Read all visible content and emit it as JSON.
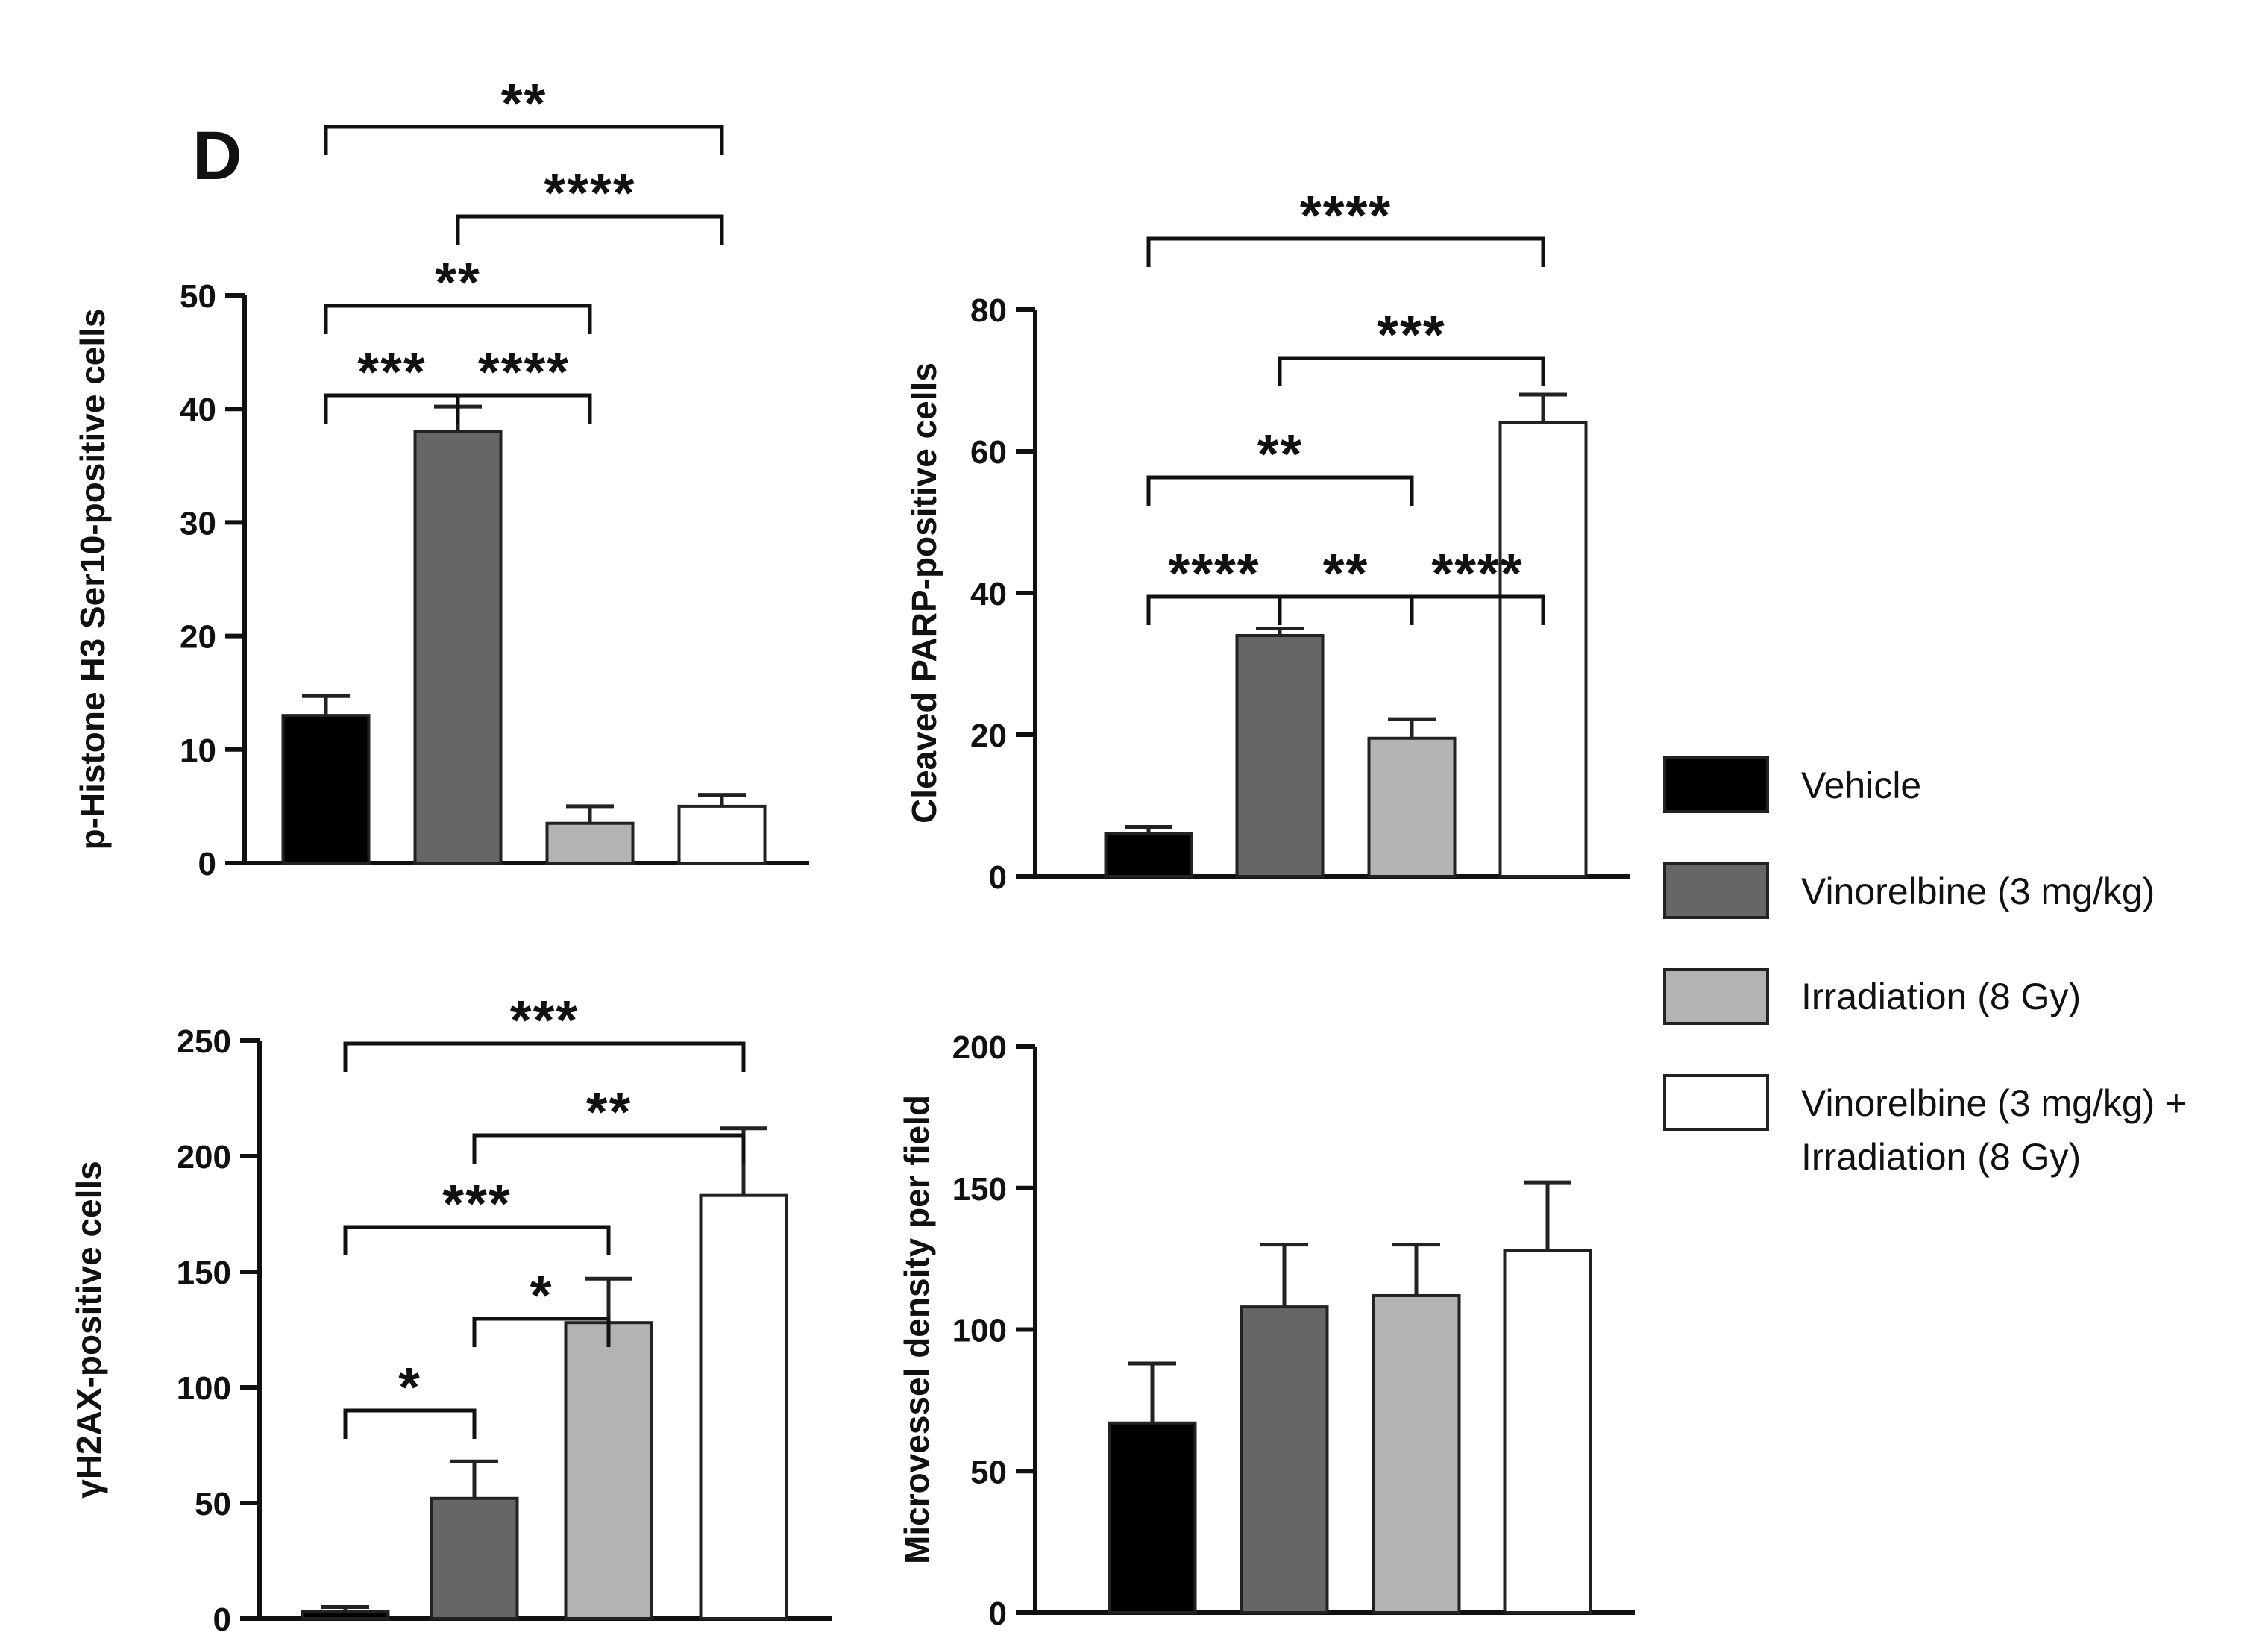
{
  "panel_letter": "D",
  "legend": {
    "items": [
      {
        "label": "Vehicle",
        "color": "#000000"
      },
      {
        "label": "Vinorelbine (3 mg/kg)",
        "color": "#666666"
      },
      {
        "label": "Irradiation (8 Gy)",
        "color": "#b3b3b3"
      },
      {
        "label": "Vinorelbine (3 mg/kg) +",
        "label2": "Irradiation (8 Gy)",
        "color": "#ffffff"
      }
    ]
  },
  "chart_data": [
    {
      "type": "bar",
      "id": "phh3",
      "ylabel": "p-Histone H3 Ser10-positive cells",
      "categories": [
        "Vehicle",
        "Vinorelbine (3 mg/kg)",
        "Irradiation (8 Gy)",
        "Vinorelbine (3 mg/kg) + Irradiation (8 Gy)"
      ],
      "values": [
        13,
        38,
        3.5,
        5
      ],
      "errors": [
        1.7,
        2.2,
        1.5,
        1
      ],
      "ylim": [
        0,
        50
      ],
      "yticks": [
        0,
        10,
        20,
        30,
        40,
        50
      ],
      "significance": [
        {
          "from": 0,
          "to": 1,
          "stars": "***"
        },
        {
          "from": 1,
          "to": 2,
          "stars": "****"
        },
        {
          "from": 0,
          "to": 2,
          "stars": "**"
        },
        {
          "from": 1,
          "to": 3,
          "stars": "****"
        },
        {
          "from": 0,
          "to": 3,
          "stars": "**"
        }
      ]
    },
    {
      "type": "bar",
      "id": "parp",
      "ylabel": "Cleaved PARP-positive cells",
      "categories": [
        "Vehicle",
        "Vinorelbine (3 mg/kg)",
        "Irradiation (8 Gy)",
        "Vinorelbine (3 mg/kg) + Irradiation (8 Gy)"
      ],
      "values": [
        6,
        34,
        19.5,
        64
      ],
      "errors": [
        1,
        1,
        2.7,
        4
      ],
      "ylim": [
        0,
        80
      ],
      "yticks": [
        0,
        20,
        40,
        60,
        80
      ],
      "significance": [
        {
          "from": 0,
          "to": 1,
          "stars": "****"
        },
        {
          "from": 1,
          "to": 2,
          "stars": "**"
        },
        {
          "from": 0,
          "to": 2,
          "stars": "**"
        },
        {
          "from": 2,
          "to": 3,
          "stars": "****"
        },
        {
          "from": 1,
          "to": 3,
          "stars": "***"
        },
        {
          "from": 0,
          "to": 3,
          "stars": "****"
        }
      ]
    },
    {
      "type": "bar",
      "id": "h2ax",
      "ylabel": "γH2AX-positive cells",
      "categories": [
        "Vehicle",
        "Vinorelbine (3 mg/kg)",
        "Irradiation (8 Gy)",
        "Vinorelbine (3 mg/kg) + Irradiation (8 Gy)"
      ],
      "values": [
        3,
        52,
        128,
        183
      ],
      "errors": [
        2,
        16,
        19,
        29
      ],
      "ylim": [
        0,
        250
      ],
      "yticks": [
        0,
        50,
        100,
        150,
        200,
        250
      ],
      "significance": [
        {
          "from": 0,
          "to": 1,
          "stars": "*"
        },
        {
          "from": 1,
          "to": 2,
          "stars": "*"
        },
        {
          "from": 0,
          "to": 2,
          "stars": "***"
        },
        {
          "from": 1,
          "to": 3,
          "stars": "**"
        },
        {
          "from": 0,
          "to": 3,
          "stars": "***"
        }
      ]
    },
    {
      "type": "bar",
      "id": "mvd",
      "ylabel": "Microvessel density per field",
      "categories": [
        "Vehicle",
        "Vinorelbine (3 mg/kg)",
        "Irradiation (8 Gy)",
        "Vinorelbine (3 mg/kg) + Irradiation (8 Gy)"
      ],
      "values": [
        67,
        108,
        112,
        128
      ],
      "errors": [
        21,
        22,
        18,
        24
      ],
      "ylim": [
        0,
        200
      ],
      "yticks": [
        0,
        50,
        100,
        150,
        200
      ],
      "significance": []
    }
  ]
}
